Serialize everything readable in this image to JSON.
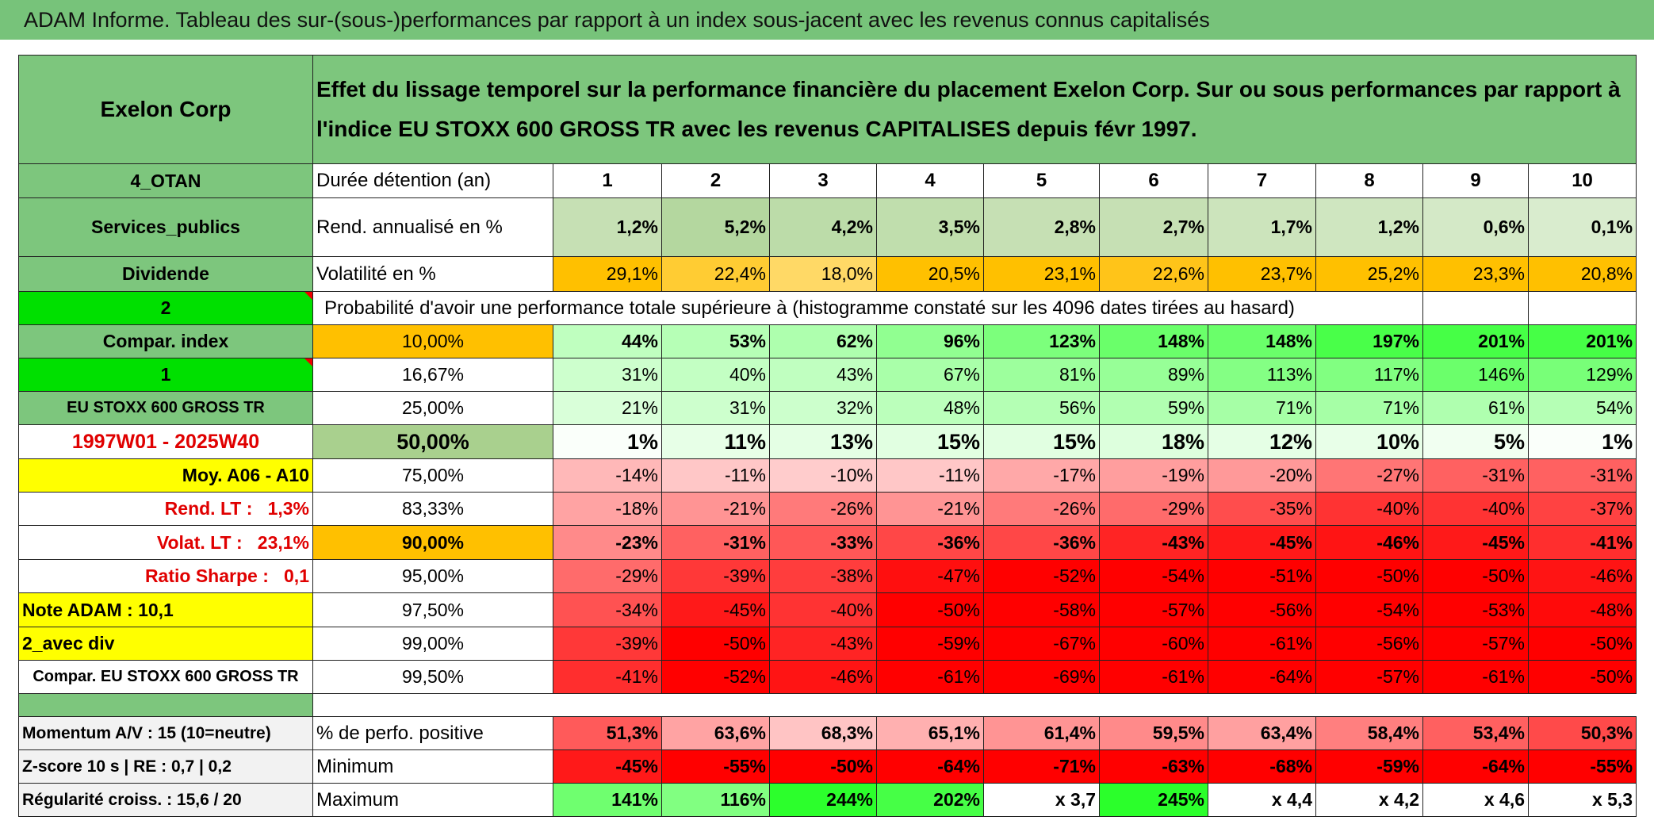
{
  "title": "ADAM Informe. Tableau des sur-(sous-)performances par rapport à un index sous-jacent avec les revenus connus capitalisés",
  "header": {
    "name": "Exelon Corp",
    "description": "Effet du lissage temporel sur la performance financière du placement Exelon Corp. Sur ou sous performances par rapport à l'indice EU STOXX 600 GROSS TR avec les revenus CAPITALISES depuis févr 1997."
  },
  "rows": [
    {
      "label": "4_OTAN",
      "metric": "Durée détention (an)",
      "values": [
        "1",
        "2",
        "3",
        "4",
        "5",
        "6",
        "7",
        "8",
        "9",
        "10"
      ]
    },
    {
      "label": "Services_publics",
      "metric": "Rend. annualisé en %",
      "values": [
        "1,2%",
        "5,2%",
        "4,2%",
        "3,5%",
        "2,8%",
        "2,7%",
        "1,7%",
        "1,2%",
        "0,6%",
        "0,1%"
      ]
    },
    {
      "label": "Dividende",
      "metric": "Volatilité en %",
      "values": [
        "29,1%",
        "22,4%",
        "18,0%",
        "20,5%",
        "23,1%",
        "22,6%",
        "23,7%",
        "25,2%",
        "23,3%",
        "20,8%"
      ]
    },
    {
      "label": "2",
      "text": "Probabilité d'avoir une performance totale supérieure à (histogramme constaté sur les 4096 dates tirées au hasard)"
    },
    {
      "label": "Compar. index",
      "metric": "10,00%",
      "values": [
        "44%",
        "53%",
        "62%",
        "96%",
        "123%",
        "148%",
        "148%",
        "197%",
        "201%",
        "201%"
      ]
    },
    {
      "label": "1",
      "metric": "16,67%",
      "values": [
        "31%",
        "40%",
        "43%",
        "67%",
        "81%",
        "89%",
        "113%",
        "117%",
        "146%",
        "129%"
      ]
    },
    {
      "label": "EU STOXX 600 GROSS TR",
      "metric": "25,00%",
      "values": [
        "21%",
        "31%",
        "32%",
        "48%",
        "56%",
        "59%",
        "71%",
        "71%",
        "61%",
        "54%"
      ]
    },
    {
      "label": "1997W01 - 2025W40",
      "metric": "50,00%",
      "values": [
        "1%",
        "11%",
        "13%",
        "15%",
        "15%",
        "18%",
        "12%",
        "10%",
        "5%",
        "1%"
      ]
    },
    {
      "label": "Moy. A06 - A10",
      "metric": "75,00%",
      "values": [
        "-14%",
        "-11%",
        "-10%",
        "-11%",
        "-17%",
        "-19%",
        "-20%",
        "-27%",
        "-31%",
        "-31%"
      ]
    },
    {
      "label": "Rend. LT :   1,3%",
      "metric": "83,33%",
      "values": [
        "-18%",
        "-21%",
        "-26%",
        "-21%",
        "-26%",
        "-29%",
        "-35%",
        "-40%",
        "-40%",
        "-37%"
      ]
    },
    {
      "label": "Volat. LT :   23,1%",
      "metric": "90,00%",
      "values": [
        "-23%",
        "-31%",
        "-33%",
        "-36%",
        "-36%",
        "-43%",
        "-45%",
        "-46%",
        "-45%",
        "-41%"
      ]
    },
    {
      "label": "Ratio Sharpe :   0,1",
      "metric": "95,00%",
      "values": [
        "-29%",
        "-39%",
        "-38%",
        "-47%",
        "-52%",
        "-54%",
        "-51%",
        "-50%",
        "-50%",
        "-46%"
      ]
    },
    {
      "label": "Note ADAM : 10,1",
      "metric": "97,50%",
      "values": [
        "-34%",
        "-45%",
        "-40%",
        "-50%",
        "-58%",
        "-57%",
        "-56%",
        "-54%",
        "-53%",
        "-48%"
      ]
    },
    {
      "label": "2_avec div",
      "metric": "99,00%",
      "values": [
        "-39%",
        "-50%",
        "-43%",
        "-59%",
        "-67%",
        "-60%",
        "-61%",
        "-56%",
        "-57%",
        "-50%"
      ]
    },
    {
      "label": "Compar. EU STOXX 600 GROSS TR",
      "metric": "99,50%",
      "values": [
        "-41%",
        "-52%",
        "-46%",
        "-61%",
        "-69%",
        "-61%",
        "-64%",
        "-57%",
        "-61%",
        "-50%"
      ]
    },
    {
      "label": "Momentum A/V : 15 (10=neutre)",
      "metric": "% de perfo. positive",
      "values": [
        "51,3%",
        "63,6%",
        "68,3%",
        "65,1%",
        "61,4%",
        "59,5%",
        "63,4%",
        "58,4%",
        "53,4%",
        "50,3%"
      ]
    },
    {
      "label": "Z-score 10 s | RE : 0,7 | 0,2",
      "metric": "Minimum",
      "values": [
        "-45%",
        "-55%",
        "-50%",
        "-64%",
        "-71%",
        "-63%",
        "-68%",
        "-59%",
        "-64%",
        "-55%"
      ]
    },
    {
      "label": "Régularité croiss. : 15,6 / 20",
      "metric": "Maximum",
      "values": [
        "141%",
        "116%",
        "244%",
        "202%",
        "x 3,7",
        "245%",
        "x 4,4",
        "x 4,2",
        "x 4,6",
        "x 5,3"
      ]
    }
  ]
}
